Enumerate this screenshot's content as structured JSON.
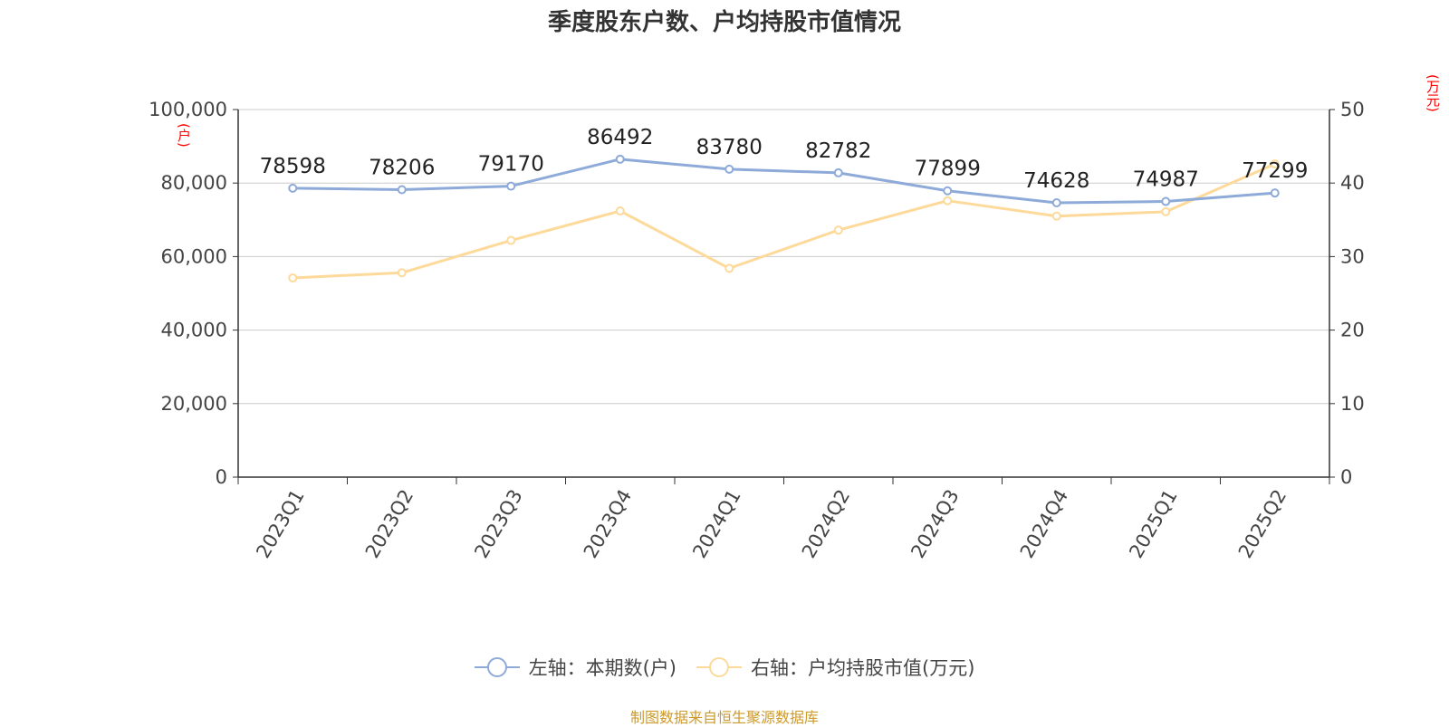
{
  "chart_data": {
    "type": "line",
    "title": "季度股东户数、户均持股市值情况",
    "categories": [
      "2023Q1",
      "2023Q2",
      "2023Q3",
      "2023Q4",
      "2024Q1",
      "2024Q2",
      "2024Q3",
      "2024Q4",
      "2025Q1",
      "2025Q2"
    ],
    "series": [
      {
        "name": "左轴：本期数(户)",
        "axis": "left",
        "color": "#8eaad8",
        "values": [
          78598,
          78206,
          79170,
          86492,
          83780,
          82782,
          77899,
          74628,
          74987,
          77299
        ],
        "data_labels": [
          "78598",
          "78206",
          "79170",
          "86492",
          "83780",
          "82782",
          "77899",
          "74628",
          "74987",
          "77299"
        ]
      },
      {
        "name": "右轴：户均持股市值(万元)",
        "axis": "right",
        "color": "#fdd99a",
        "values": [
          27.1,
          27.8,
          32.2,
          36.2,
          28.4,
          33.6,
          37.6,
          35.5,
          36.1,
          42.6
        ]
      }
    ],
    "left_axis": {
      "unit": "(户)",
      "ylim": [
        0,
        100000
      ],
      "ticks": [
        "0",
        "20,000",
        "40,000",
        "60,000",
        "80,000",
        "100,000"
      ]
    },
    "right_axis": {
      "unit": "(万元)",
      "ylim": [
        0,
        50
      ],
      "ticks": [
        "0",
        "10",
        "20",
        "30",
        "40",
        "50"
      ]
    },
    "grid": true,
    "legend_position": "bottom-center"
  },
  "source_note": "制图数据来自恒生聚源数据库",
  "colors": {
    "axis": "#333333",
    "grid": "#cccccc",
    "unit_label": "#ff0000",
    "source": "#cc9a2b"
  }
}
